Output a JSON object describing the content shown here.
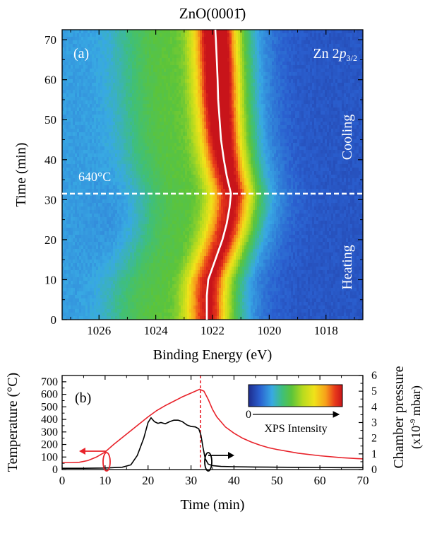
{
  "figure_title": "ZnO(0001̄)",
  "colors": {
    "temperature": "#e8222a",
    "pressure": "#000000",
    "marker_line": "#e8222a",
    "colormap": [
      "#1e2c8c",
      "#2a5fcf",
      "#38a9e3",
      "#3fbf7a",
      "#5cc43a",
      "#b9db1e",
      "#f0e21a",
      "#f7a21a",
      "#e83a1a",
      "#c8141a"
    ]
  },
  "chart_data": [
    {
      "type": "heatmap",
      "panel_label": "(a)",
      "annotation": "Zn 2p3/2",
      "annotation_main": "Zn 2",
      "annotation_italic": "p",
      "annotation_sub": "3/2",
      "xlabel": "Binding Energy (eV)",
      "ylabel": "Time (min)",
      "xlim": [
        1027.3,
        1016.7
      ],
      "ylim": [
        0,
        72.5
      ],
      "x_reversed": true,
      "xticks": [
        1026,
        1024,
        1022,
        1020,
        1018
      ],
      "xticks_minor": [
        1027,
        1025,
        1023,
        1021,
        1019,
        1017
      ],
      "yticks": [
        0,
        10,
        20,
        30,
        40,
        50,
        60,
        70
      ],
      "yticks_minor": [
        5,
        15,
        25,
        35,
        45,
        55,
        65
      ],
      "threshold_time": 31.5,
      "threshold_label": "640°C",
      "region_labels": [
        "Heating",
        "Cooling"
      ],
      "peak_position": {
        "t": [
          0,
          6,
          10,
          12,
          16,
          20,
          24,
          28,
          31.5,
          33,
          36,
          40,
          45,
          50,
          55,
          60,
          65,
          70,
          72.5
        ],
        "e": [
          1022.2,
          1022.2,
          1022.15,
          1022.05,
          1021.85,
          1021.65,
          1021.5,
          1021.4,
          1021.35,
          1021.4,
          1021.5,
          1021.6,
          1021.7,
          1021.75,
          1021.8,
          1021.82,
          1021.85,
          1021.88,
          1021.9
        ]
      },
      "colorbar": {
        "label": "XPS Intensity",
        "tick": "0"
      }
    },
    {
      "type": "line",
      "panel_label": "(b)",
      "xlabel": "Time (min)",
      "ylabel": "Temperature (°C)",
      "ylabel_right": "Chamber pressure",
      "ylabel_right_units_pre": "(x10",
      "ylabel_right_units_sup": "-9",
      "ylabel_right_units_post": " mbar)",
      "xlim": [
        0,
        70
      ],
      "ylim": [
        0,
        750
      ],
      "ylim_right": [
        0,
        6
      ],
      "xticks": [
        0,
        10,
        20,
        30,
        40,
        50,
        60,
        70
      ],
      "xticks_minor": [
        5,
        15,
        25,
        35,
        45,
        55,
        65
      ],
      "yticks": [
        0,
        100,
        200,
        300,
        400,
        500,
        600,
        700
      ],
      "yticks_minor": [
        50,
        150,
        250,
        350,
        450,
        550,
        650
      ],
      "yticks_right": [
        0,
        1,
        2,
        3,
        4,
        5,
        6
      ],
      "yticks_right_minor": [
        0.5,
        1.5,
        2.5,
        3.5,
        4.5,
        5.5
      ],
      "vline_x": 32.2,
      "series": [
        {
          "axis": "left",
          "x": [
            0,
            2,
            4,
            6,
            8,
            10,
            12,
            14,
            16,
            18,
            20,
            22,
            24,
            26,
            28,
            30,
            32,
            33,
            34,
            35,
            36,
            38,
            40,
            42,
            44,
            46,
            48,
            50,
            55,
            60,
            65,
            70
          ],
          "y": [
            55,
            55,
            58,
            72,
            100,
            140,
            200,
            255,
            310,
            365,
            420,
            470,
            510,
            545,
            580,
            610,
            640,
            625,
            560,
            480,
            420,
            340,
            290,
            250,
            220,
            195,
            175,
            160,
            130,
            110,
            95,
            85
          ]
        },
        {
          "axis": "right",
          "x": [
            0,
            5,
            10,
            14,
            16,
            17.5,
            19,
            20,
            20.7,
            21.5,
            22.3,
            23,
            24,
            25,
            26,
            27,
            28,
            29,
            30,
            31,
            31.8,
            32.3,
            32.8,
            33.3,
            34,
            35,
            37,
            40,
            45,
            50,
            55,
            60,
            65,
            70
          ],
          "y": [
            0.08,
            0.08,
            0.1,
            0.15,
            0.3,
            0.9,
            2.0,
            3.0,
            3.3,
            3.05,
            2.95,
            3.0,
            2.92,
            3.05,
            3.15,
            3.15,
            3.05,
            2.85,
            2.75,
            2.72,
            2.6,
            2.2,
            1.4,
            0.7,
            0.35,
            0.25,
            0.2,
            0.18,
            0.16,
            0.15,
            0.14,
            0.13,
            0.12,
            0.12
          ]
        }
      ]
    }
  ]
}
